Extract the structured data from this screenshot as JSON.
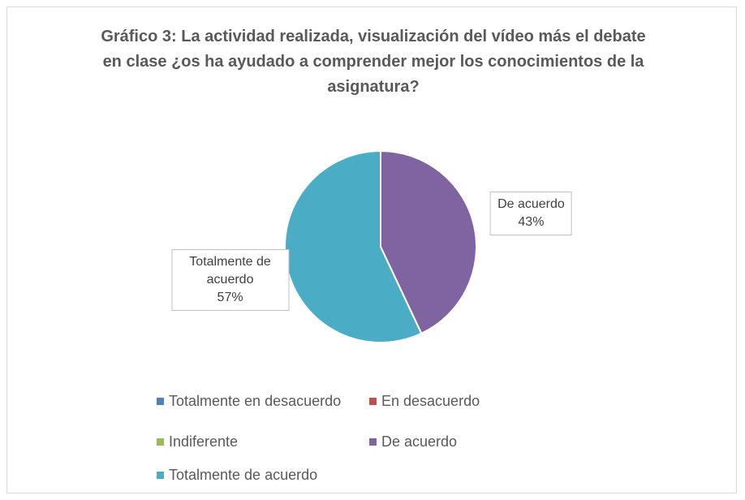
{
  "chart_data": {
    "type": "pie",
    "title": "Gráfico 3: La actividad realizada, visualización del vídeo más el debate en clase ¿os ha ayudado a comprender mejor los conocimientos de la asignatura?",
    "categories": [
      "Totalmente en desacuerdo",
      "En desacuerdo",
      "Indiferente",
      "De acuerdo",
      "Totalmente de acuerdo"
    ],
    "values": [
      0,
      0,
      0,
      43,
      57
    ],
    "value_labels": [
      null,
      null,
      null,
      "43%",
      "57%"
    ],
    "colors": [
      "#4f81bd",
      "#c0504d",
      "#9bbb59",
      "#8064a2",
      "#4bacc6"
    ],
    "legend": "bottom"
  }
}
